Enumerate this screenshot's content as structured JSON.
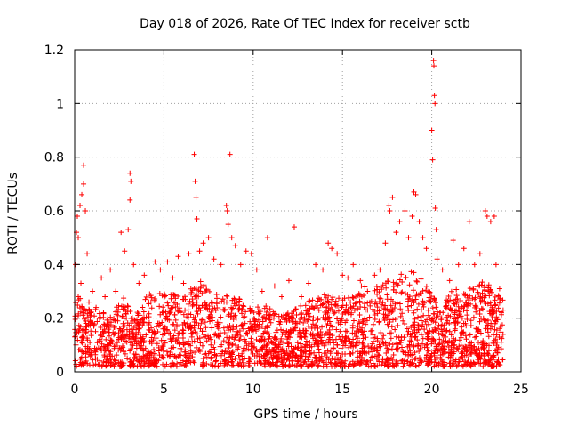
{
  "chart_data": {
    "type": "scatter",
    "title": "Day 018 of 2026, Rate Of TEC Index for receiver sctb",
    "xlabel": "GPS time / hours",
    "ylabel": "ROTI / TECUs",
    "xlim": [
      0,
      25
    ],
    "ylim": [
      0,
      1.2
    ],
    "x_ticks": [
      "0",
      "5",
      "10",
      "15",
      "20",
      "25"
    ],
    "y_ticks": [
      "0",
      "0.2",
      "0.4",
      "0.6",
      "0.8",
      "1",
      "1.2"
    ],
    "grid": true,
    "marker": "+",
    "color": "#ff0000",
    "series": [
      {
        "name": "ROTI",
        "points": [
          [
            0.05,
            0.4
          ],
          [
            0.1,
            0.52
          ],
          [
            0.15,
            0.58
          ],
          [
            0.2,
            0.5
          ],
          [
            0.3,
            0.62
          ],
          [
            0.4,
            0.66
          ],
          [
            0.5,
            0.77
          ],
          [
            0.5,
            0.7
          ],
          [
            0.6,
            0.6
          ],
          [
            0.7,
            0.44
          ],
          [
            0.2,
            0.28
          ],
          [
            0.35,
            0.33
          ],
          [
            0.45,
            0.22
          ],
          [
            0.8,
            0.26
          ],
          [
            1.0,
            0.3
          ],
          [
            1.2,
            0.24
          ],
          [
            1.5,
            0.35
          ],
          [
            1.7,
            0.28
          ],
          [
            2.0,
            0.38
          ],
          [
            2.3,
            0.3
          ],
          [
            2.6,
            0.52
          ],
          [
            2.8,
            0.45
          ],
          [
            3.0,
            0.53
          ],
          [
            3.1,
            0.74
          ],
          [
            3.15,
            0.71
          ],
          [
            3.1,
            0.64
          ],
          [
            3.3,
            0.4
          ],
          [
            3.6,
            0.33
          ],
          [
            3.9,
            0.36
          ],
          [
            4.2,
            0.29
          ],
          [
            4.5,
            0.41
          ],
          [
            4.8,
            0.38
          ],
          [
            5.2,
            0.41
          ],
          [
            5.5,
            0.35
          ],
          [
            5.8,
            0.43
          ],
          [
            6.1,
            0.33
          ],
          [
            6.4,
            0.44
          ],
          [
            6.7,
            0.81
          ],
          [
            6.75,
            0.71
          ],
          [
            6.8,
            0.65
          ],
          [
            6.85,
            0.57
          ],
          [
            7.0,
            0.45
          ],
          [
            7.2,
            0.48
          ],
          [
            7.5,
            0.5
          ],
          [
            7.8,
            0.42
          ],
          [
            8.2,
            0.4
          ],
          [
            8.5,
            0.62
          ],
          [
            8.55,
            0.6
          ],
          [
            8.6,
            0.55
          ],
          [
            8.7,
            0.81
          ],
          [
            8.8,
            0.5
          ],
          [
            9.0,
            0.47
          ],
          [
            9.3,
            0.4
          ],
          [
            9.6,
            0.45
          ],
          [
            9.9,
            0.44
          ],
          [
            10.2,
            0.38
          ],
          [
            10.5,
            0.3
          ],
          [
            10.8,
            0.5
          ],
          [
            11.2,
            0.32
          ],
          [
            11.6,
            0.28
          ],
          [
            12.0,
            0.34
          ],
          [
            12.3,
            0.54
          ],
          [
            12.7,
            0.28
          ],
          [
            13.1,
            0.33
          ],
          [
            13.5,
            0.4
          ],
          [
            13.9,
            0.38
          ],
          [
            14.2,
            0.48
          ],
          [
            14.4,
            0.46
          ],
          [
            14.7,
            0.44
          ],
          [
            15.0,
            0.36
          ],
          [
            15.3,
            0.35
          ],
          [
            15.6,
            0.4
          ],
          [
            16.0,
            0.34
          ],
          [
            16.4,
            0.3
          ],
          [
            16.8,
            0.36
          ],
          [
            17.1,
            0.38
          ],
          [
            17.4,
            0.48
          ],
          [
            17.6,
            0.62
          ],
          [
            17.65,
            0.6
          ],
          [
            17.8,
            0.65
          ],
          [
            18.0,
            0.52
          ],
          [
            18.2,
            0.56
          ],
          [
            18.5,
            0.6
          ],
          [
            18.7,
            0.5
          ],
          [
            18.9,
            0.58
          ],
          [
            19.0,
            0.67
          ],
          [
            19.1,
            0.66
          ],
          [
            19.3,
            0.56
          ],
          [
            19.5,
            0.5
          ],
          [
            19.7,
            0.46
          ],
          [
            20.0,
            0.9
          ],
          [
            20.05,
            0.79
          ],
          [
            20.1,
            1.16
          ],
          [
            20.12,
            1.14
          ],
          [
            20.15,
            1.03
          ],
          [
            20.18,
            1.0
          ],
          [
            20.2,
            0.61
          ],
          [
            20.25,
            0.53
          ],
          [
            20.3,
            0.42
          ],
          [
            20.6,
            0.38
          ],
          [
            21.0,
            0.34
          ],
          [
            21.2,
            0.49
          ],
          [
            21.5,
            0.4
          ],
          [
            21.8,
            0.46
          ],
          [
            22.1,
            0.56
          ],
          [
            22.4,
            0.4
          ],
          [
            22.7,
            0.44
          ],
          [
            23.0,
            0.6
          ],
          [
            23.1,
            0.58
          ],
          [
            23.3,
            0.56
          ],
          [
            23.5,
            0.58
          ],
          [
            23.6,
            0.4
          ],
          [
            23.8,
            0.31
          ],
          [
            23.9,
            0.22
          ]
        ]
      }
    ],
    "dense_band": {
      "note": "dense cloud of ROTI samples between roughly 0.02 and 0.30 TECUs across 0-24 h",
      "x_range": [
        0,
        24
      ],
      "y_min": 0.02,
      "y_max_by_hour": [
        [
          0,
          0.32
        ],
        [
          1,
          0.24
        ],
        [
          2,
          0.22
        ],
        [
          2.8,
          0.28
        ],
        [
          3.3,
          0.2
        ],
        [
          4,
          0.28
        ],
        [
          5,
          0.3
        ],
        [
          6,
          0.28
        ],
        [
          7,
          0.34
        ],
        [
          8,
          0.3
        ],
        [
          9,
          0.28
        ],
        [
          10,
          0.26
        ],
        [
          11,
          0.24
        ],
        [
          12,
          0.22
        ],
        [
          13,
          0.26
        ],
        [
          14,
          0.3
        ],
        [
          15,
          0.28
        ],
        [
          16,
          0.32
        ],
        [
          17,
          0.32
        ],
        [
          18,
          0.36
        ],
        [
          19,
          0.38
        ],
        [
          20,
          0.3
        ],
        [
          20.5,
          0.22
        ],
        [
          21,
          0.3
        ],
        [
          22,
          0.32
        ],
        [
          23,
          0.34
        ],
        [
          24,
          0.28
        ]
      ]
    }
  }
}
